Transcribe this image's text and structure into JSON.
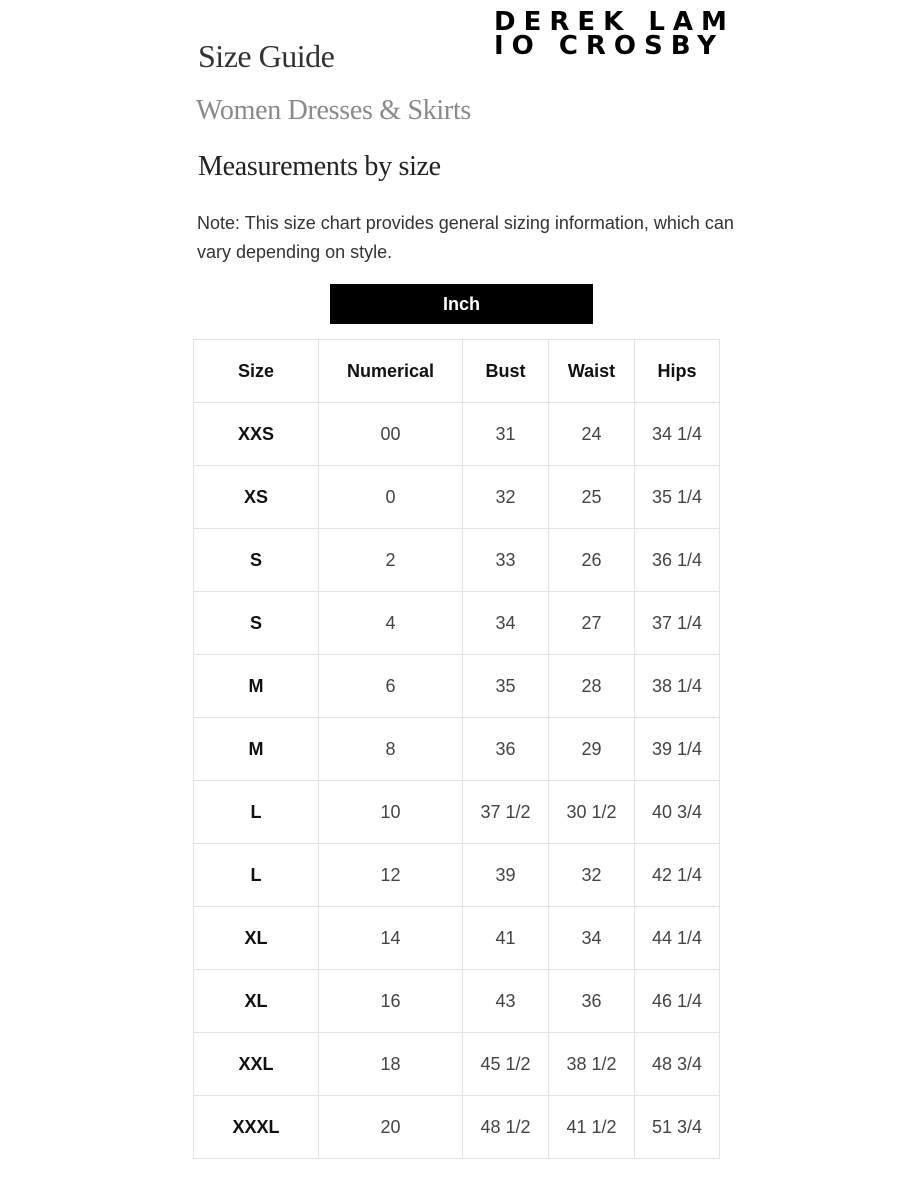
{
  "brand": {
    "line1": "DEREK LAM",
    "line2": "IO CROSBY"
  },
  "title": "Size Guide",
  "subtitle": "Women Dresses & Skirts",
  "section_title": "Measurements by size",
  "note": "Note: This size chart provides general sizing information, which can vary depending on style.",
  "unit_button": "Inch",
  "table": {
    "headers": [
      "Size",
      "Numerical",
      "Bust",
      "Waist",
      "Hips"
    ],
    "rows": [
      [
        "XXS",
        "00",
        "31",
        "24",
        "34 1/4"
      ],
      [
        "XS",
        "0",
        "32",
        "25",
        "35 1/4"
      ],
      [
        "S",
        "2",
        "33",
        "26",
        "36 1/4"
      ],
      [
        "S",
        "4",
        "34",
        "27",
        "37 1/4"
      ],
      [
        "M",
        "6",
        "35",
        "28",
        "38 1/4"
      ],
      [
        "M",
        "8",
        "36",
        "29",
        "39 1/4"
      ],
      [
        "L",
        "10",
        "37 1/2",
        "30 1/2",
        "40 3/4"
      ],
      [
        "L",
        "12",
        "39",
        "32",
        "42 1/4"
      ],
      [
        "XL",
        "14",
        "41",
        "34",
        "44 1/4"
      ],
      [
        "XL",
        "16",
        "43",
        "36",
        "46 1/4"
      ],
      [
        "XXL",
        "18",
        "45 1/2",
        "38 1/2",
        "48 3/4"
      ],
      [
        "XXXL",
        "20",
        "48 1/2",
        "41 1/2",
        "51 3/4"
      ]
    ]
  }
}
